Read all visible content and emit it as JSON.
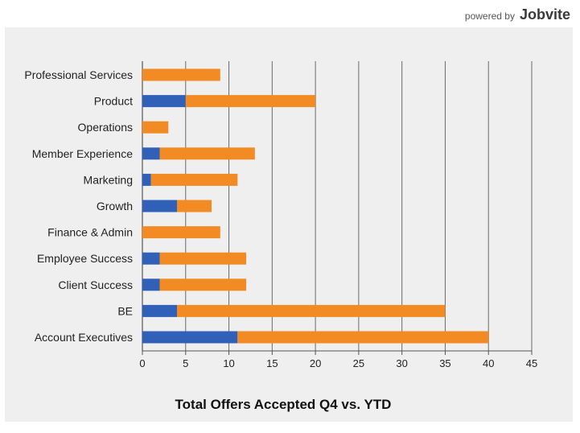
{
  "branding": {
    "prefix": "powered by",
    "name": "Jobvite"
  },
  "chart_data": {
    "type": "bar",
    "orientation": "horizontal",
    "stacked": true,
    "title": "Total Offers Accepted Q4 vs. YTD",
    "xlabel": "",
    "ylabel": "",
    "categories": [
      "Professional Services",
      "Product",
      "Operations",
      "Member Experience",
      "Marketing",
      "Growth",
      "Finance & Admin",
      "Employee Success",
      "Client Success",
      "BE",
      "Account Executives"
    ],
    "series": [
      {
        "values": [
          0,
          5,
          0,
          2,
          1,
          4,
          0,
          2,
          2,
          4,
          11
        ],
        "color": "#3060b8"
      },
      {
        "values": [
          9,
          15,
          3,
          11,
          10,
          4,
          9,
          10,
          10,
          31,
          29
        ],
        "color": "#f28b24"
      }
    ],
    "xlim": [
      0,
      45
    ],
    "xticks": [
      "0",
      "5",
      "10",
      "15",
      "20",
      "25",
      "30",
      "35",
      "40",
      "45"
    ],
    "grid": true,
    "legend": "none"
  }
}
